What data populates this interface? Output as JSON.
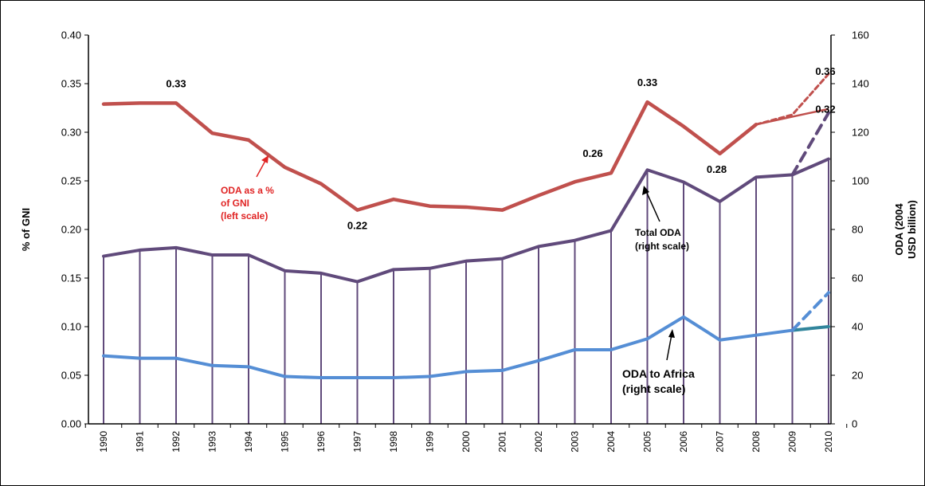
{
  "chart_data": {
    "type": "line",
    "x": [
      "1990",
      "1991",
      "1992",
      "1993",
      "1994",
      "1995",
      "1996",
      "1997",
      "1998",
      "1999",
      "2000",
      "2001",
      "2002",
      "2003",
      "2004",
      "2005",
      "2006",
      "2007",
      "2008",
      "2009",
      "2010"
    ],
    "left_axis": {
      "label": "% of GNI",
      "ylim": [
        0,
        0.4
      ],
      "ticks": [
        "0.00",
        "0.05",
        "0.10",
        "0.15",
        "0.20",
        "0.25",
        "0.30",
        "0.35",
        "0.40"
      ]
    },
    "right_axis": {
      "label_line1": "ODA (2004",
      "label_line2": "USD billion)",
      "ylim": [
        0,
        160
      ],
      "ticks": [
        "0",
        "20",
        "40",
        "60",
        "80",
        "100",
        "120",
        "140",
        "160"
      ]
    },
    "series": [
      {
        "key": "gni",
        "axis": "left",
        "color": "#c0504d",
        "values": [
          0.329,
          0.33,
          0.33,
          0.299,
          0.292,
          0.264,
          0.247,
          0.22,
          0.231,
          0.224,
          0.223,
          0.22,
          0.235,
          0.249,
          0.258,
          0.331,
          0.306,
          0.278,
          0.308,
          null,
          0.324
        ],
        "projection_dashed": [
          [
            2008,
            0.308
          ],
          [
            2009,
            0.318
          ],
          [
            2010,
            0.36
          ]
        ]
      },
      {
        "key": "total",
        "axis": "right",
        "color": "#604a7b",
        "values": [
          69,
          71.5,
          72.5,
          69.5,
          69.5,
          63,
          62,
          58.5,
          63.5,
          64,
          67,
          68,
          73,
          75.5,
          79.5,
          104.5,
          99.5,
          91.5,
          101.5,
          102.5,
          109
        ],
        "projection_dashed": [
          [
            2009,
            102.5
          ],
          [
            2010,
            128
          ]
        ]
      },
      {
        "key": "africa",
        "axis": "right",
        "color": "#558ed5",
        "values": [
          28,
          27,
          27,
          24,
          23.5,
          19.5,
          19,
          19,
          19,
          19.5,
          21.5,
          22,
          26,
          30.5,
          30.5,
          35,
          44,
          34.5,
          36.5,
          38.5,
          40
        ],
        "projection_dashed": [
          [
            2009,
            38.5
          ],
          [
            2010,
            54
          ]
        ]
      }
    ],
    "data_labels": [
      {
        "text": "0.33",
        "x": "1992",
        "y": 0.33
      },
      {
        "text": "0.22",
        "x": "1997",
        "y": 0.22
      },
      {
        "text": "0.26",
        "x": "2004",
        "y": 0.258
      },
      {
        "text": "0.33",
        "x": "2005",
        "y": 0.331
      },
      {
        "text": "0.28",
        "x": "2007",
        "y": 0.278
      },
      {
        "text": "0.36",
        "x": "2010",
        "y": 0.36
      },
      {
        "text": "0.32",
        "x": "2010",
        "y": 0.324
      }
    ],
    "annotations": {
      "gni": [
        "ODA as a %",
        "of GNI",
        "(left scale)"
      ],
      "total": [
        "Total ODA",
        "(right scale)"
      ],
      "africa": [
        "ODA to Africa",
        "(right scale)"
      ]
    },
    "colors": {
      "gni_text": "#e02424",
      "drop_lines": "#604a7b",
      "africa_tail": "#31859c"
    },
    "grid": false,
    "legend": "none"
  }
}
